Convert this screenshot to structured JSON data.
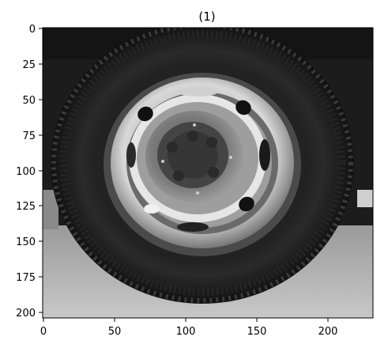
{
  "figure": {
    "title": "(1)",
    "image_description_name": "grayscale-tire-wheel-image",
    "image_width_units": 232,
    "image_height_units": 205,
    "x_axis": {
      "ticks": [
        0,
        50,
        100,
        150,
        200
      ],
      "range": [
        0,
        232
      ]
    },
    "y_axis": {
      "ticks": [
        0,
        25,
        50,
        75,
        100,
        125,
        150,
        175,
        200
      ],
      "range": [
        0,
        205
      ],
      "inverted": true
    },
    "colors": {
      "background": "#ffffff",
      "axis": "#000000"
    }
  }
}
